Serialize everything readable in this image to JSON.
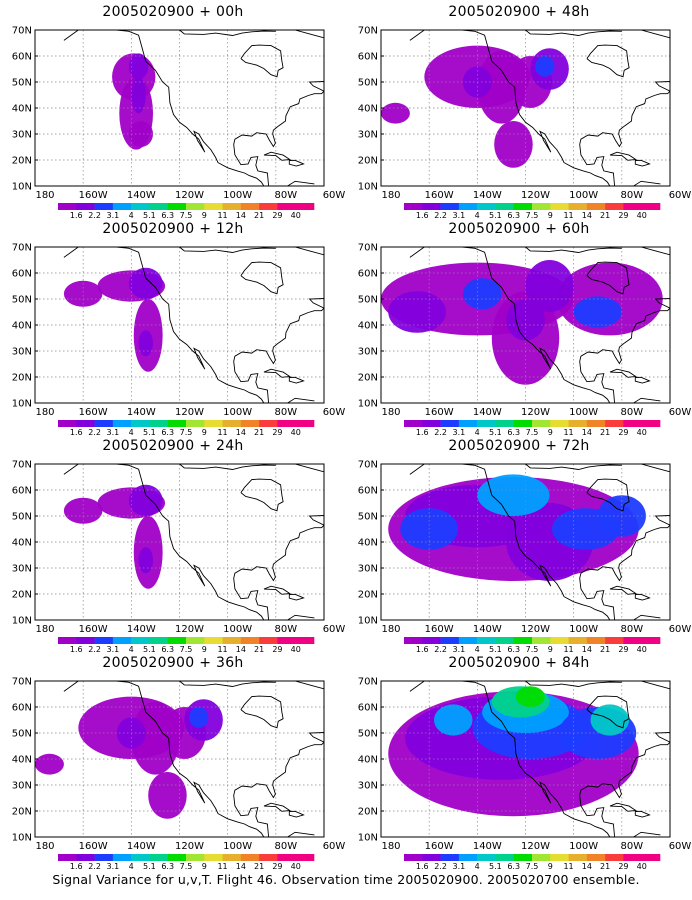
{
  "caption": "Signal Variance for u,v,T. Flight 46. Observation time 2005020900. 2005020700 ensemble.",
  "map": {
    "lat_labels": [
      "70N",
      "60N",
      "50N",
      "40N",
      "30N",
      "20N",
      "10N"
    ],
    "lon_labels": [
      "180",
      "160W",
      "140W",
      "120W",
      "100W",
      "80W",
      "60W"
    ]
  },
  "colorbar": {
    "labels": [
      "1.6",
      "2.2",
      "3.1",
      "4",
      "5.1",
      "6.3",
      "7.5",
      "9",
      "11",
      "14",
      "21",
      "29",
      "40"
    ],
    "colors": [
      "#a000c8",
      "#8200dc",
      "#1e3cff",
      "#00a0ff",
      "#00c8c8",
      "#00d28c",
      "#00dc00",
      "#a0e632",
      "#e6dc32",
      "#e6af2d",
      "#f08228",
      "#fa3c3c",
      "#f00082"
    ]
  },
  "panels": [
    {
      "title": "2005020900 + 00h",
      "level": 0
    },
    {
      "title": "2005020900 + 48h",
      "level": 2
    },
    {
      "title": "2005020900 + 12h",
      "level": 1
    },
    {
      "title": "2005020900 + 60h",
      "level": 3
    },
    {
      "title": "2005020900 + 24h",
      "level": 1
    },
    {
      "title": "2005020900 + 72h",
      "level": 4
    },
    {
      "title": "2005020900 + 36h",
      "level": 2
    },
    {
      "title": "2005020900 + 84h",
      "level": 5
    }
  ]
}
